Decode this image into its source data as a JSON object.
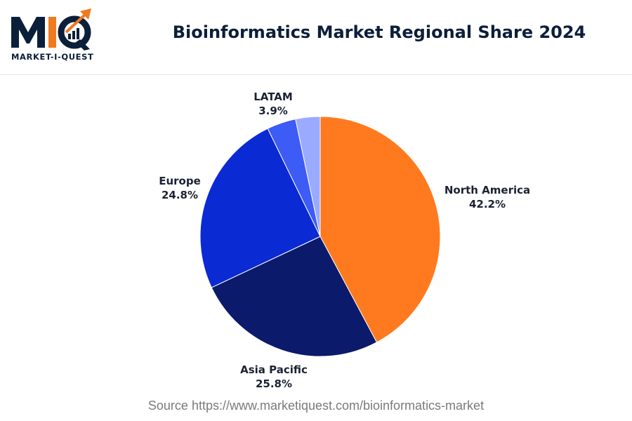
{
  "header": {
    "logo_mark": "MIQ",
    "logo_text": "MARKET-I-QUEST"
  },
  "chart_data": {
    "type": "pie",
    "title": "Bioinformatics Market Regional Share 2024",
    "slices": [
      {
        "label": "North America",
        "value": 42.2,
        "display": "42.2%",
        "color": "#ff7a1f"
      },
      {
        "label": "Asia Pacific",
        "value": 25.8,
        "display": "25.8%",
        "color": "#0c1a6b"
      },
      {
        "label": "Europe",
        "value": 24.8,
        "display": "24.8%",
        "color": "#0a2ad4"
      },
      {
        "label": "LATAM",
        "value": 3.9,
        "display": "3.9%",
        "color": "#3d5bf5"
      },
      {
        "label": "",
        "value": 3.3,
        "display": "",
        "color": "#9aabff"
      }
    ],
    "start": "12 o'clock",
    "direction": "clockwise",
    "legend": "none"
  },
  "footer": {
    "source": "Source https://www.marketiquest.com/bioinformatics-market"
  },
  "colors": {
    "brand_navy": "#0b1f3a",
    "brand_orange": "#f07a1e"
  }
}
